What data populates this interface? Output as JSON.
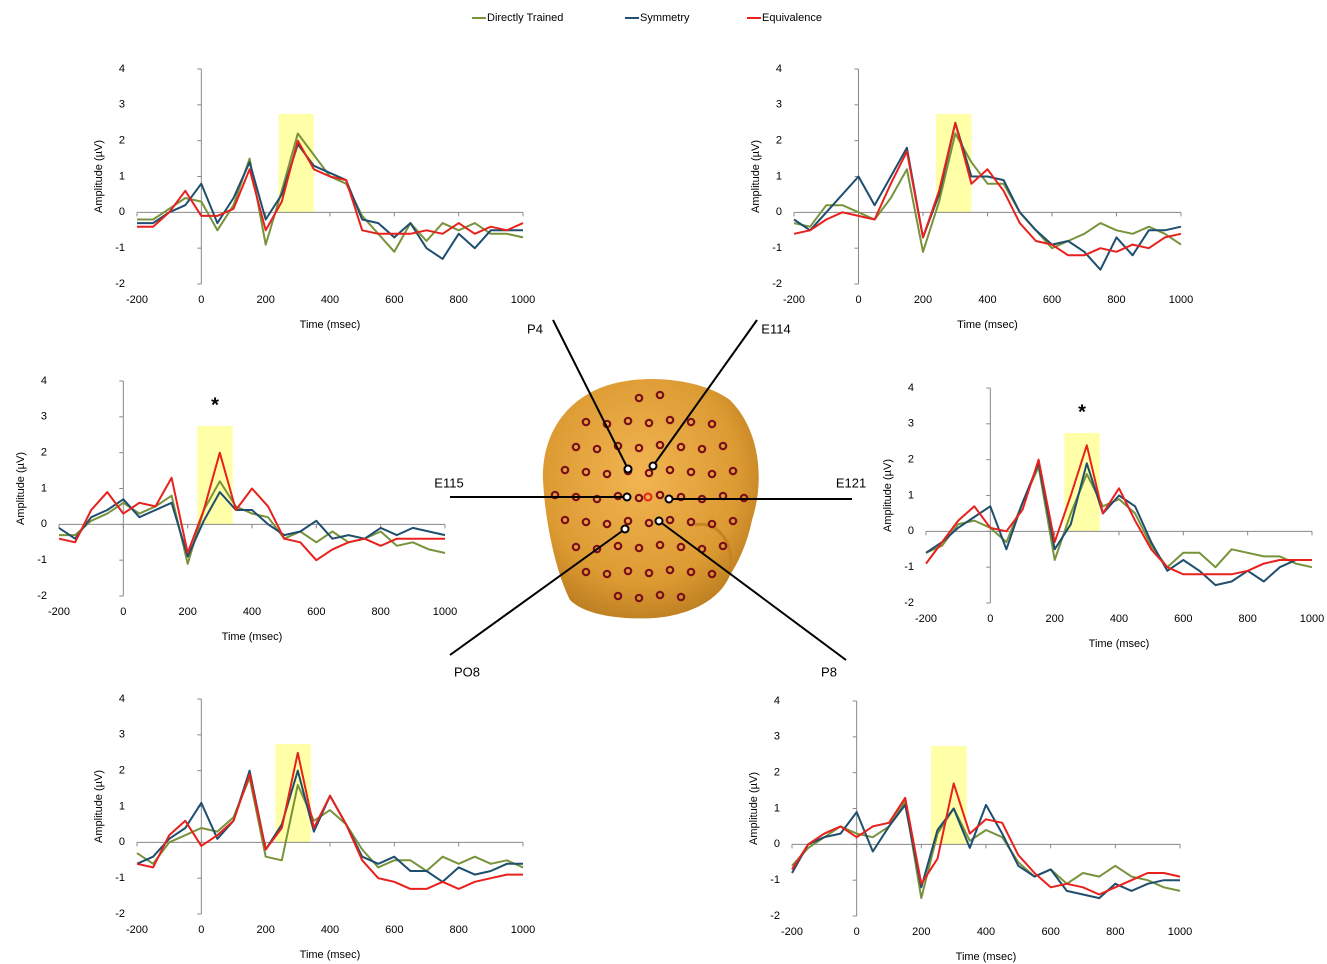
{
  "chart_data": [
    {
      "type": "line",
      "xlabel": "Time (msec)",
      "ylabel": "Amplitude (µV)",
      "xlim": [
        -200,
        1000
      ],
      "ylim": [
        -2,
        4
      ],
      "xticks": [
        -200,
        0,
        200,
        400,
        600,
        800,
        1000
      ],
      "yticks": [
        -2,
        -1,
        0,
        1,
        2,
        3,
        4
      ],
      "highlight": [
        240,
        350
      ],
      "x": [
        -200,
        -150,
        -100,
        -50,
        0,
        50,
        100,
        150,
        200,
        250,
        300,
        350,
        400,
        450,
        500,
        550,
        600,
        650,
        700,
        750,
        800,
        850,
        900,
        950,
        1000
      ],
      "series": [
        {
          "name": "Directly Trained",
          "color": "#77933c",
          "values": [
            -0.2,
            -0.2,
            0.1,
            0.4,
            0.3,
            -0.5,
            0.2,
            1.5,
            -0.9,
            0.6,
            2.2,
            1.6,
            1.0,
            0.8,
            -0.1,
            -0.6,
            -1.1,
            -0.3,
            -0.8,
            -0.3,
            -0.5,
            -0.3,
            -0.6,
            -0.6,
            -0.7
          ]
        },
        {
          "name": "Symmetry",
          "color": "#1f4e6e",
          "values": [
            -0.3,
            -0.3,
            0.0,
            0.2,
            0.8,
            -0.3,
            0.4,
            1.4,
            -0.2,
            0.5,
            1.9,
            1.3,
            1.1,
            0.9,
            -0.2,
            -0.3,
            -0.7,
            -0.3,
            -1.0,
            -1.3,
            -0.6,
            -1.0,
            -0.5,
            -0.5,
            -0.5
          ]
        },
        {
          "name": "Equivalence",
          "color": "#e8211d",
          "values": [
            -0.4,
            -0.4,
            0.0,
            0.6,
            -0.1,
            -0.1,
            0.1,
            1.2,
            -0.5,
            0.3,
            2.0,
            1.2,
            1.0,
            0.9,
            -0.5,
            -0.6,
            -0.6,
            -0.6,
            -0.5,
            -0.6,
            -0.3,
            -0.6,
            -0.4,
            -0.5,
            -0.3
          ]
        }
      ]
    },
    {
      "type": "line",
      "xlabel": "Time (msec)",
      "ylabel": "Amplitude (µV)",
      "xlim": [
        -200,
        1000
      ],
      "ylim": [
        -2,
        4
      ],
      "xticks": [
        -200,
        0,
        200,
        400,
        600,
        800,
        1000
      ],
      "yticks": [
        -2,
        -1,
        0,
        1,
        2,
        3,
        4
      ],
      "highlight": [
        240,
        350
      ],
      "x": [
        -200,
        -150,
        -100,
        -50,
        0,
        50,
        100,
        150,
        200,
        250,
        300,
        350,
        400,
        450,
        500,
        550,
        600,
        650,
        700,
        750,
        800,
        850,
        900,
        950,
        1000
      ],
      "series": [
        {
          "color": "#77933c",
          "values": [
            -0.3,
            -0.4,
            0.2,
            0.2,
            0.0,
            -0.2,
            0.4,
            1.2,
            -1.1,
            0.3,
            2.2,
            1.4,
            0.8,
            0.8,
            0.0,
            -0.5,
            -1.0,
            -0.8,
            -0.6,
            -0.3,
            -0.5,
            -0.6,
            -0.4,
            -0.6,
            -0.9
          ]
        },
        {
          "color": "#1f4e6e",
          "values": [
            -0.2,
            -0.5,
            0.0,
            0.5,
            1.0,
            0.2,
            1.0,
            1.8,
            -0.7,
            0.5,
            2.5,
            1.0,
            1.0,
            0.9,
            0.0,
            -0.5,
            -0.9,
            -0.8,
            -1.1,
            -1.6,
            -0.7,
            -1.2,
            -0.5,
            -0.5,
            -0.4
          ]
        },
        {
          "color": "#e8211d",
          "values": [
            -0.6,
            -0.5,
            -0.2,
            0.0,
            -0.1,
            -0.2,
            0.8,
            1.7,
            -0.7,
            0.6,
            2.5,
            0.8,
            1.2,
            0.6,
            -0.3,
            -0.8,
            -0.9,
            -1.2,
            -1.2,
            -1.0,
            -1.1,
            -0.9,
            -1.0,
            -0.7,
            -0.6
          ]
        }
      ]
    },
    {
      "type": "line",
      "xlabel": "Time (msec)",
      "ylabel": "Amplitude (µV)",
      "xlim": [
        -200,
        1000
      ],
      "ylim": [
        -2,
        4
      ],
      "xticks": [
        -200,
        0,
        200,
        400,
        600,
        800,
        1000
      ],
      "yticks": [
        -2,
        -1,
        0,
        1,
        2,
        3,
        4
      ],
      "highlight": [
        230,
        340
      ],
      "annotations": [
        {
          "text": "*",
          "x": 285,
          "y": 3.3
        }
      ],
      "x": [
        -200,
        -150,
        -100,
        -50,
        0,
        50,
        100,
        150,
        200,
        250,
        300,
        350,
        400,
        450,
        500,
        550,
        600,
        650,
        700,
        750,
        800,
        850,
        900,
        950,
        1000
      ],
      "series": [
        {
          "color": "#77933c",
          "values": [
            -0.3,
            -0.3,
            0.1,
            0.3,
            0.6,
            0.3,
            0.5,
            0.8,
            -1.1,
            0.4,
            1.2,
            0.5,
            0.3,
            0.2,
            -0.4,
            -0.2,
            -0.5,
            -0.2,
            -0.5,
            -0.4,
            -0.2,
            -0.6,
            -0.5,
            -0.7,
            -0.8
          ]
        },
        {
          "color": "#1f4e6e",
          "values": [
            -0.1,
            -0.4,
            0.2,
            0.4,
            0.7,
            0.2,
            0.4,
            0.6,
            -0.9,
            0.1,
            0.9,
            0.4,
            0.4,
            0.0,
            -0.3,
            -0.2,
            0.1,
            -0.4,
            -0.3,
            -0.4,
            -0.1,
            -0.3,
            -0.1,
            -0.2,
            -0.3
          ]
        },
        {
          "color": "#e8211d",
          "values": [
            -0.4,
            -0.5,
            0.4,
            0.9,
            0.3,
            0.6,
            0.5,
            1.3,
            -0.8,
            0.4,
            2.0,
            0.4,
            1.0,
            0.5,
            -0.4,
            -0.5,
            -1.0,
            -0.7,
            -0.5,
            -0.4,
            -0.6,
            -0.4,
            -0.4,
            -0.4,
            -0.4
          ]
        }
      ]
    },
    {
      "type": "line",
      "xlabel": "Time (msec)",
      "ylabel": "Amplitude (µV)",
      "xlim": [
        -200,
        1000
      ],
      "ylim": [
        -2,
        4
      ],
      "xticks": [
        -200,
        0,
        200,
        400,
        600,
        800,
        1000
      ],
      "yticks": [
        -2,
        -1,
        0,
        1,
        2,
        3,
        4
      ],
      "highlight": [
        230,
        340
      ],
      "annotations": [
        {
          "text": "*",
          "x": 285,
          "y": 3.3
        }
      ],
      "x": [
        -200,
        -150,
        -100,
        -50,
        0,
        50,
        100,
        150,
        200,
        250,
        300,
        350,
        400,
        450,
        500,
        550,
        600,
        650,
        700,
        750,
        800,
        850,
        900,
        950,
        1000
      ],
      "series": [
        {
          "color": "#77933c",
          "values": [
            -0.6,
            -0.4,
            0.2,
            0.3,
            0.1,
            -0.3,
            0.8,
            1.8,
            -0.8,
            0.5,
            1.6,
            0.7,
            0.9,
            0.5,
            -0.4,
            -1.0,
            -0.6,
            -0.6,
            -1.0,
            -0.5,
            -0.6,
            -0.7,
            -0.7,
            -0.9,
            -1.0
          ]
        },
        {
          "color": "#1f4e6e",
          "values": [
            -0.6,
            -0.3,
            0.1,
            0.4,
            0.7,
            -0.5,
            0.8,
            1.9,
            -0.5,
            0.2,
            1.9,
            0.5,
            1.0,
            0.7,
            -0.3,
            -1.1,
            -0.8,
            -1.1,
            -1.5,
            -1.4,
            -1.1,
            -1.4,
            -1.0,
            -0.8,
            -0.8
          ]
        },
        {
          "color": "#e8211d",
          "values": [
            -0.9,
            -0.3,
            0.3,
            0.7,
            0.1,
            0.0,
            0.6,
            2.0,
            -0.3,
            1.0,
            2.4,
            0.5,
            1.2,
            0.3,
            -0.5,
            -1.0,
            -1.2,
            -1.2,
            -1.2,
            -1.2,
            -1.1,
            -0.9,
            -0.8,
            -0.8,
            -0.8
          ]
        }
      ]
    },
    {
      "type": "line",
      "xlabel": "Time (msec)",
      "ylabel": "Amplitude (µV)",
      "xlim": [
        -200,
        1000
      ],
      "ylim": [
        -2,
        4
      ],
      "xticks": [
        -200,
        0,
        200,
        400,
        600,
        800,
        1000
      ],
      "yticks": [
        -2,
        -1,
        0,
        1,
        2,
        3,
        4
      ],
      "highlight": [
        230,
        340
      ],
      "x": [
        -200,
        -150,
        -100,
        -50,
        0,
        50,
        100,
        150,
        200,
        250,
        300,
        350,
        400,
        450,
        500,
        550,
        600,
        650,
        700,
        750,
        800,
        850,
        900,
        950,
        1000
      ],
      "series": [
        {
          "color": "#77933c",
          "values": [
            -0.3,
            -0.6,
            0.0,
            0.2,
            0.4,
            0.3,
            0.7,
            1.8,
            -0.4,
            -0.5,
            1.6,
            0.6,
            0.9,
            0.5,
            -0.2,
            -0.7,
            -0.5,
            -0.5,
            -0.8,
            -0.4,
            -0.6,
            -0.4,
            -0.6,
            -0.5,
            -0.7
          ]
        },
        {
          "color": "#1f4e6e",
          "values": [
            -0.6,
            -0.4,
            0.1,
            0.4,
            1.1,
            0.1,
            0.6,
            2.0,
            -0.2,
            0.5,
            2.0,
            0.3,
            1.3,
            0.5,
            -0.4,
            -0.6,
            -0.4,
            -0.8,
            -0.8,
            -1.1,
            -0.7,
            -0.9,
            -0.8,
            -0.6,
            -0.6
          ]
        },
        {
          "color": "#e8211d",
          "values": [
            -0.6,
            -0.7,
            0.2,
            0.6,
            -0.1,
            0.2,
            0.6,
            1.9,
            -0.2,
            0.4,
            2.5,
            0.4,
            1.3,
            0.5,
            -0.5,
            -1.0,
            -1.1,
            -1.3,
            -1.3,
            -1.1,
            -1.3,
            -1.1,
            -1.0,
            -0.9,
            -0.9
          ]
        }
      ]
    },
    {
      "type": "line",
      "xlabel": "Time (msec)",
      "ylabel": "Amplitude (µV)",
      "xlim": [
        -200,
        1000
      ],
      "ylim": [
        -2,
        4
      ],
      "xticks": [
        -200,
        0,
        200,
        400,
        600,
        800,
        1000
      ],
      "yticks": [
        -2,
        -1,
        0,
        1,
        2,
        3,
        4
      ],
      "highlight": [
        230,
        340
      ],
      "x": [
        -200,
        -150,
        -100,
        -50,
        0,
        50,
        100,
        150,
        200,
        250,
        300,
        350,
        400,
        450,
        500,
        550,
        600,
        650,
        700,
        750,
        800,
        850,
        900,
        950,
        1000
      ],
      "series": [
        {
          "color": "#77933c",
          "values": [
            -0.6,
            -0.1,
            0.2,
            0.5,
            0.3,
            0.2,
            0.5,
            1.2,
            -1.5,
            0.3,
            1.0,
            0.1,
            0.4,
            0.2,
            -0.5,
            -0.9,
            -0.7,
            -1.1,
            -0.8,
            -0.9,
            -0.6,
            -0.9,
            -1.0,
            -1.2,
            -1.3
          ]
        },
        {
          "color": "#1f4e6e",
          "values": [
            -0.8,
            0.0,
            0.2,
            0.3,
            0.9,
            -0.2,
            0.5,
            1.1,
            -1.2,
            0.4,
            1.0,
            -0.1,
            1.1,
            0.3,
            -0.6,
            -0.9,
            -0.7,
            -1.3,
            -1.4,
            -1.5,
            -1.1,
            -1.3,
            -1.1,
            -1.0,
            -1.0
          ]
        },
        {
          "color": "#e8211d",
          "values": [
            -0.7,
            0.0,
            0.3,
            0.5,
            0.2,
            0.5,
            0.6,
            1.3,
            -1.1,
            -0.4,
            1.7,
            0.3,
            0.7,
            0.6,
            -0.3,
            -0.8,
            -1.2,
            -1.1,
            -1.2,
            -1.4,
            -1.2,
            -1.0,
            -0.8,
            -0.8,
            -0.9
          ]
        }
      ]
    }
  ],
  "head": {
    "electrodes": [
      "P4",
      "E114",
      "E115",
      "E121",
      "PO8",
      "P8"
    ]
  }
}
